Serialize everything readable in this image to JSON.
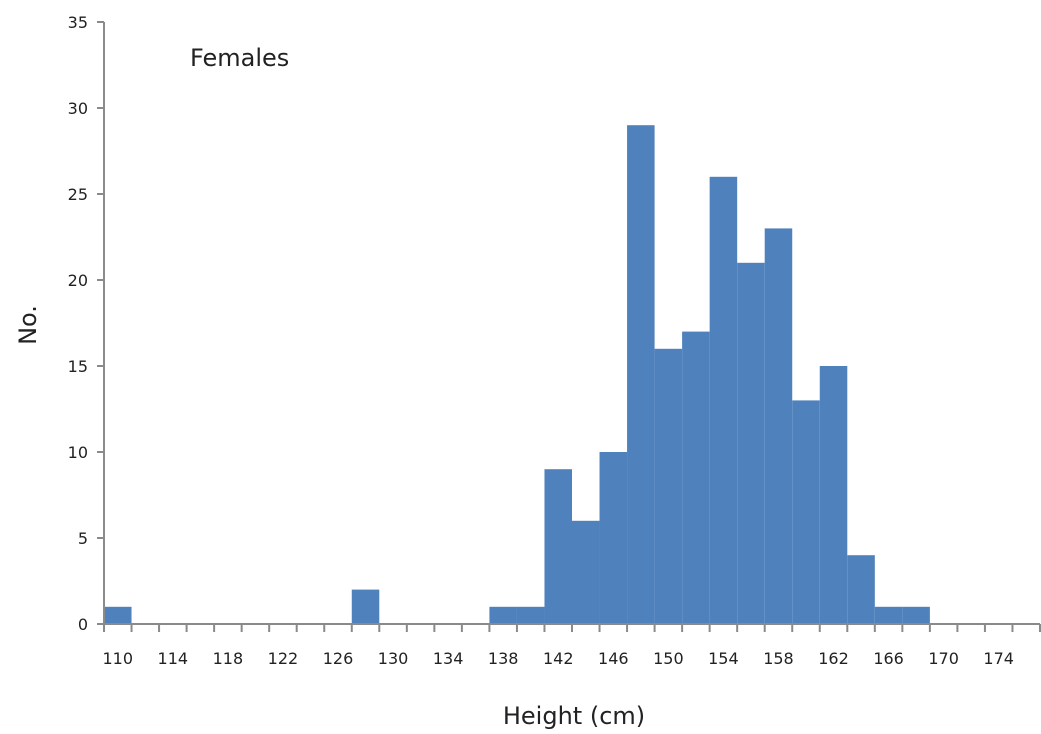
{
  "chart_data": {
    "type": "bar",
    "title": "",
    "annotation": "Females",
    "xlabel": "Height (cm)",
    "ylabel": "No.",
    "bin_width": 2,
    "x_bin_starts": [
      110,
      112,
      114,
      116,
      118,
      120,
      122,
      124,
      126,
      128,
      130,
      132,
      134,
      136,
      138,
      140,
      142,
      144,
      146,
      148,
      150,
      152,
      154,
      156,
      158,
      160,
      162,
      164,
      166,
      168,
      170,
      172,
      174,
      176
    ],
    "values": [
      1,
      0,
      0,
      0,
      0,
      0,
      0,
      0,
      0,
      2,
      0,
      0,
      0,
      0,
      1,
      1,
      9,
      6,
      10,
      29,
      16,
      17,
      26,
      21,
      23,
      13,
      15,
      4,
      1,
      1,
      0,
      0,
      0,
      0
    ],
    "xlim": [
      110,
      178
    ],
    "ylim": [
      0,
      35
    ],
    "y_ticks": [
      0,
      5,
      10,
      15,
      20,
      25,
      30,
      35
    ],
    "x_tick_labels": [
      "110",
      "114",
      "118",
      "122",
      "126",
      "130",
      "134",
      "138",
      "142",
      "146",
      "150",
      "154",
      "158",
      "162",
      "166",
      "170",
      "174"
    ],
    "bar_color": "#4f81bd",
    "grid": false,
    "legend": "none"
  }
}
